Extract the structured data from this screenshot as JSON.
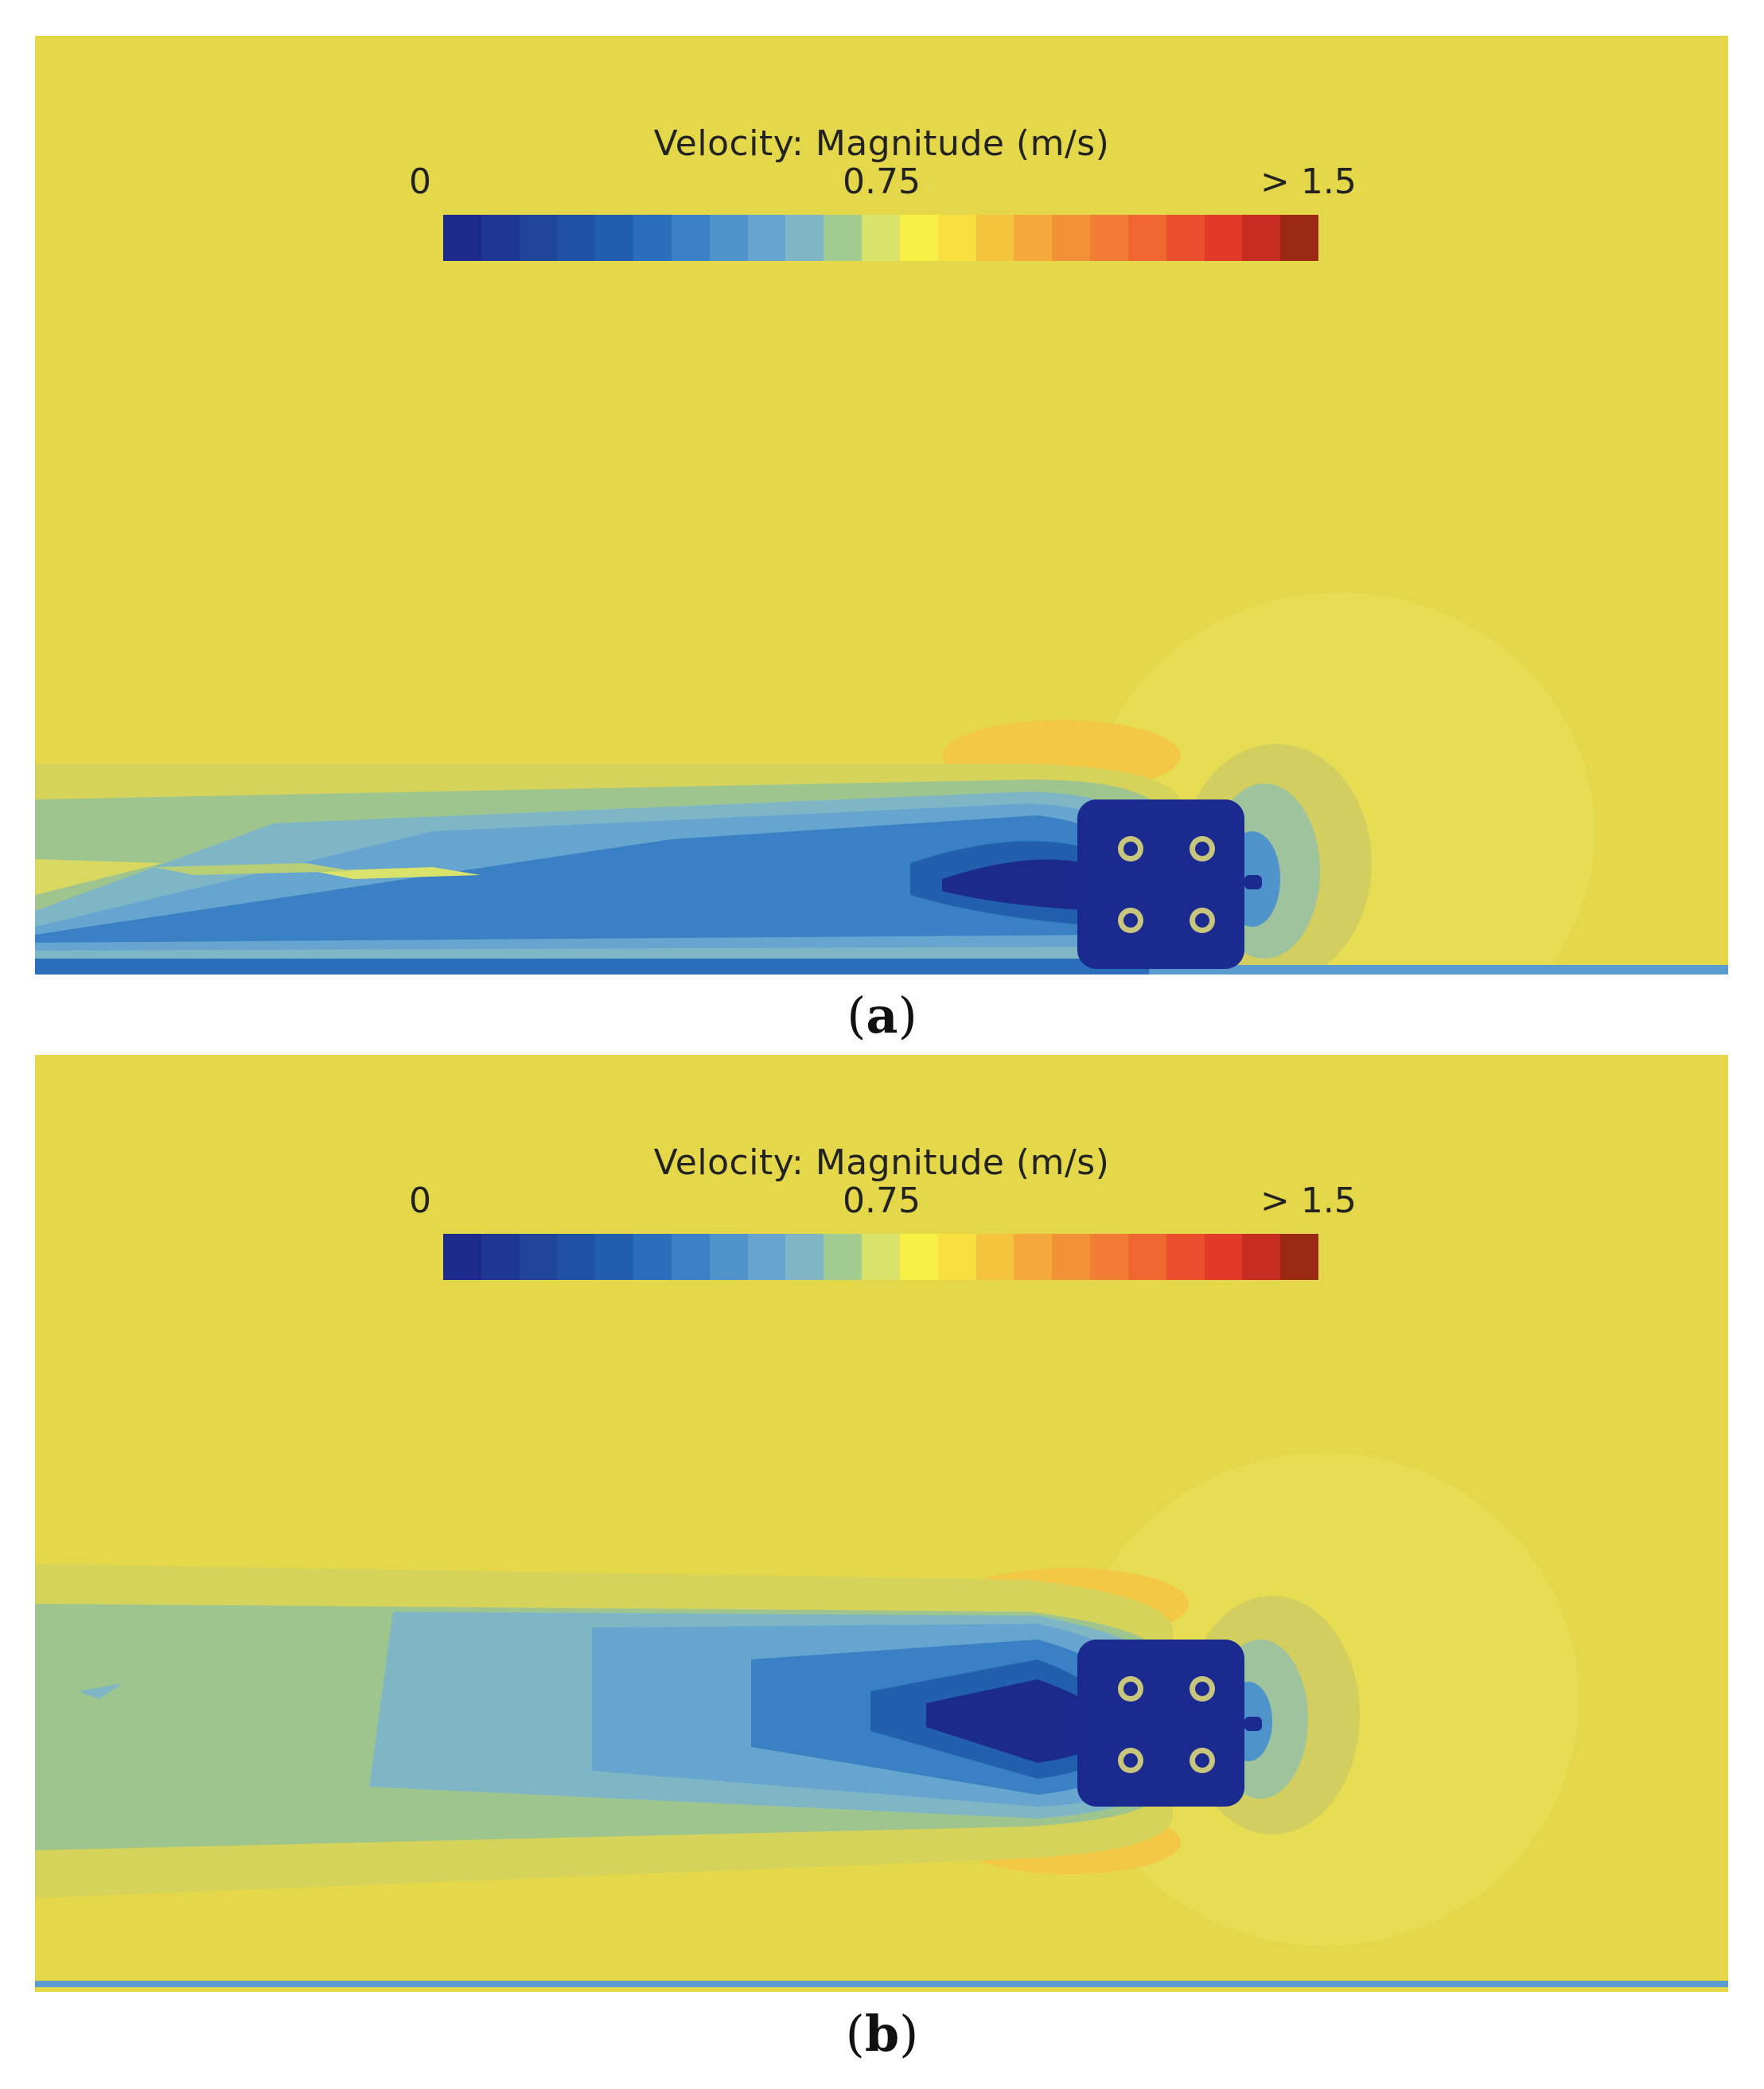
{
  "figure": {
    "panels": [
      {
        "id": "a",
        "caption_open": "(",
        "caption_letter": "a",
        "caption_close": ")",
        "legend_title": "Velocity: Magnitude (m/s)",
        "tick_min": "0",
        "tick_mid": "0.75",
        "tick_max": "> 1.5"
      },
      {
        "id": "b",
        "caption_open": "(",
        "caption_letter": "b",
        "caption_close": ")",
        "legend_title": "Velocity: Magnitude (m/s)",
        "tick_min": "0",
        "tick_mid": "0.75",
        "tick_max": "> 1.5"
      }
    ]
  },
  "colormap": [
    "#1c2a8c",
    "#1f3791",
    "#1f4599",
    "#2052a3",
    "#2260ad",
    "#2a6fbb",
    "#3a80c4",
    "#4f93cb",
    "#66a5cf",
    "#7fb6c6",
    "#a2cc92",
    "#d9e36a",
    "#f7f045",
    "#f9df3f",
    "#f6c33c",
    "#f4a93a",
    "#f29237",
    "#f27d34",
    "#ef6631",
    "#ea4f2d",
    "#e13a28",
    "#c62c20",
    "#9a2a14"
  ],
  "colors": {
    "background_field": "#e4d84a",
    "vehicle_body": "#1a2a8e"
  }
}
